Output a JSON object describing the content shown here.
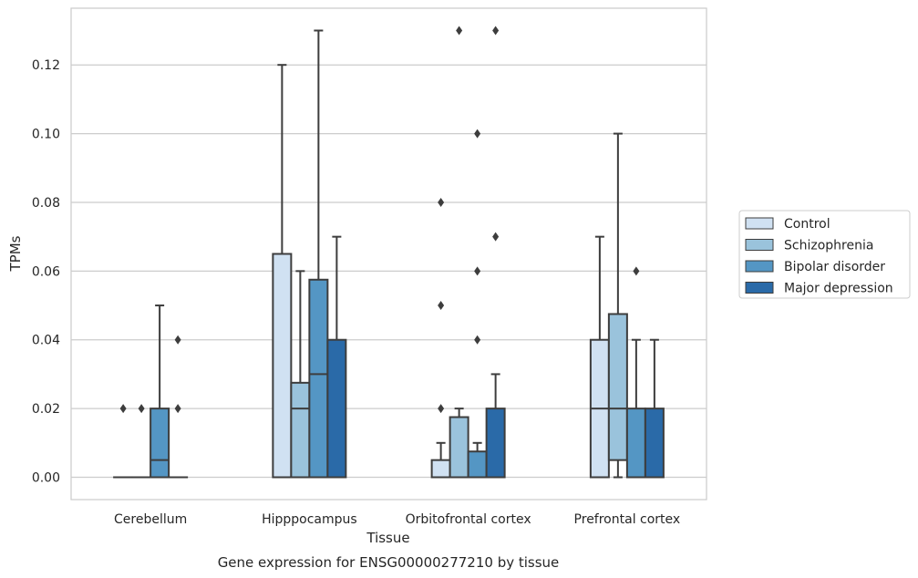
{
  "chart_data": {
    "type": "box",
    "caption": "Gene expression for ENSG00000277210 by tissue",
    "xlabel": "Tissue",
    "ylabel": "TPMs",
    "ylim": [
      -0.0065,
      0.1365
    ],
    "yticks": [
      0.0,
      0.02,
      0.04,
      0.06,
      0.08,
      0.1,
      0.12
    ],
    "ytick_labels": [
      "0.00",
      "0.02",
      "0.04",
      "0.06",
      "0.08",
      "0.10",
      "0.12"
    ],
    "grid": "horizontal",
    "legend_position": "right",
    "categories": [
      "Cerebellum",
      "Hipppocampus",
      "Orbitofrontal cortex",
      "Prefrontal cortex"
    ],
    "series": [
      {
        "name": "Control",
        "color": "#d0e1f2",
        "boxes": [
          {
            "q1": 0,
            "median": 0,
            "q3": 0,
            "whisker_low": 0,
            "whisker_high": 0,
            "outliers": [
              0.02
            ]
          },
          {
            "q1": 0,
            "median": 0,
            "q3": 0.065,
            "whisker_low": 0,
            "whisker_high": 0.12,
            "outliers": []
          },
          {
            "q1": 0,
            "median": 0,
            "q3": 0.005,
            "whisker_low": 0,
            "whisker_high": 0.01,
            "outliers": [
              0.02,
              0.05,
              0.08
            ]
          },
          {
            "q1": 0,
            "median": 0.02,
            "q3": 0.04,
            "whisker_low": 0,
            "whisker_high": 0.07,
            "outliers": []
          }
        ]
      },
      {
        "name": "Schizophrenia",
        "color": "#9ac3dc",
        "boxes": [
          {
            "q1": 0,
            "median": 0,
            "q3": 0,
            "whisker_low": 0,
            "whisker_high": 0,
            "outliers": [
              0.02
            ]
          },
          {
            "q1": 0,
            "median": 0.02,
            "q3": 0.0275,
            "whisker_low": 0,
            "whisker_high": 0.06,
            "outliers": []
          },
          {
            "q1": 0,
            "median": 0,
            "q3": 0.0175,
            "whisker_low": 0,
            "whisker_high": 0.02,
            "outliers": [
              0.13
            ]
          },
          {
            "q1": 0.005,
            "median": 0.02,
            "q3": 0.0475,
            "whisker_low": 0,
            "whisker_high": 0.1,
            "outliers": []
          }
        ]
      },
      {
        "name": "Bipolar disorder",
        "color": "#5496c4",
        "boxes": [
          {
            "q1": 0,
            "median": 0.005,
            "q3": 0.02,
            "whisker_low": 0,
            "whisker_high": 0.05,
            "outliers": []
          },
          {
            "q1": 0,
            "median": 0.03,
            "q3": 0.0575,
            "whisker_low": 0,
            "whisker_high": 0.13,
            "outliers": []
          },
          {
            "q1": 0,
            "median": 0,
            "q3": 0.0075,
            "whisker_low": 0,
            "whisker_high": 0.01,
            "outliers": [
              0.04,
              0.06,
              0.1
            ]
          },
          {
            "q1": 0,
            "median": 0,
            "q3": 0.02,
            "whisker_low": 0,
            "whisker_high": 0.04,
            "outliers": [
              0.06
            ]
          }
        ]
      },
      {
        "name": "Major depression",
        "color": "#2a6aa8",
        "boxes": [
          {
            "q1": 0,
            "median": 0,
            "q3": 0,
            "whisker_low": 0,
            "whisker_high": 0,
            "outliers": [
              0.02,
              0.04
            ]
          },
          {
            "q1": 0,
            "median": 0,
            "q3": 0.04,
            "whisker_low": 0,
            "whisker_high": 0.07,
            "outliers": []
          },
          {
            "q1": 0,
            "median": 0,
            "q3": 0.02,
            "whisker_low": 0,
            "whisker_high": 0.03,
            "outliers": [
              0.07,
              0.13
            ]
          },
          {
            "q1": 0,
            "median": 0,
            "q3": 0.02,
            "whisker_low": 0,
            "whisker_high": 0.04,
            "outliers": []
          }
        ]
      }
    ]
  }
}
